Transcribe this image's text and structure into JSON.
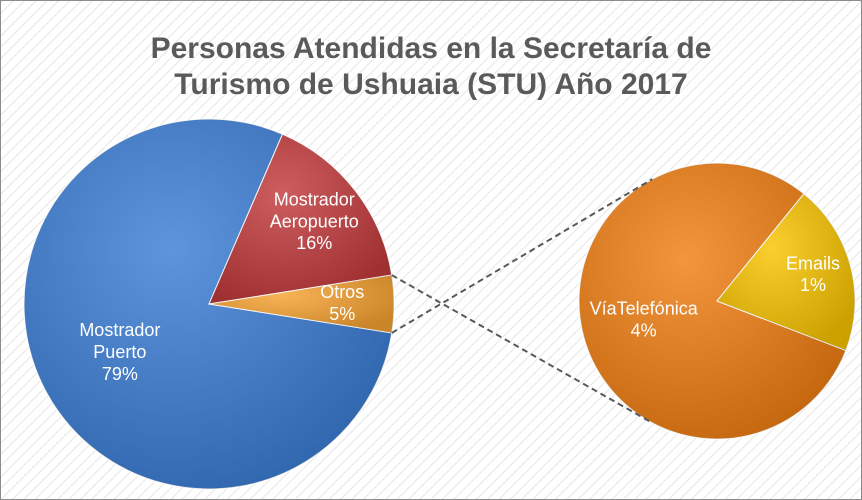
{
  "chart_data": {
    "type": "pie",
    "title": "Personas Atendidas en la Secretaría de Turismo de Ushuaia (STU) Año 2017",
    "categories": [
      "Mostrador Puerto",
      "Mostrador Aeropuerto",
      "Otros"
    ],
    "values": [
      79,
      16,
      5
    ],
    "value_labels": [
      "79%",
      "16%",
      "5%"
    ],
    "colors": [
      "#3b7dd4",
      "#c23a3c",
      "#f5a230"
    ],
    "secondary": {
      "categories": [
        "VíaTelefónica",
        "Emails"
      ],
      "values": [
        4,
        1
      ],
      "value_labels": [
        "4%",
        "1%"
      ],
      "colors": [
        "#f07e12",
        "#f8c400"
      ]
    }
  }
}
